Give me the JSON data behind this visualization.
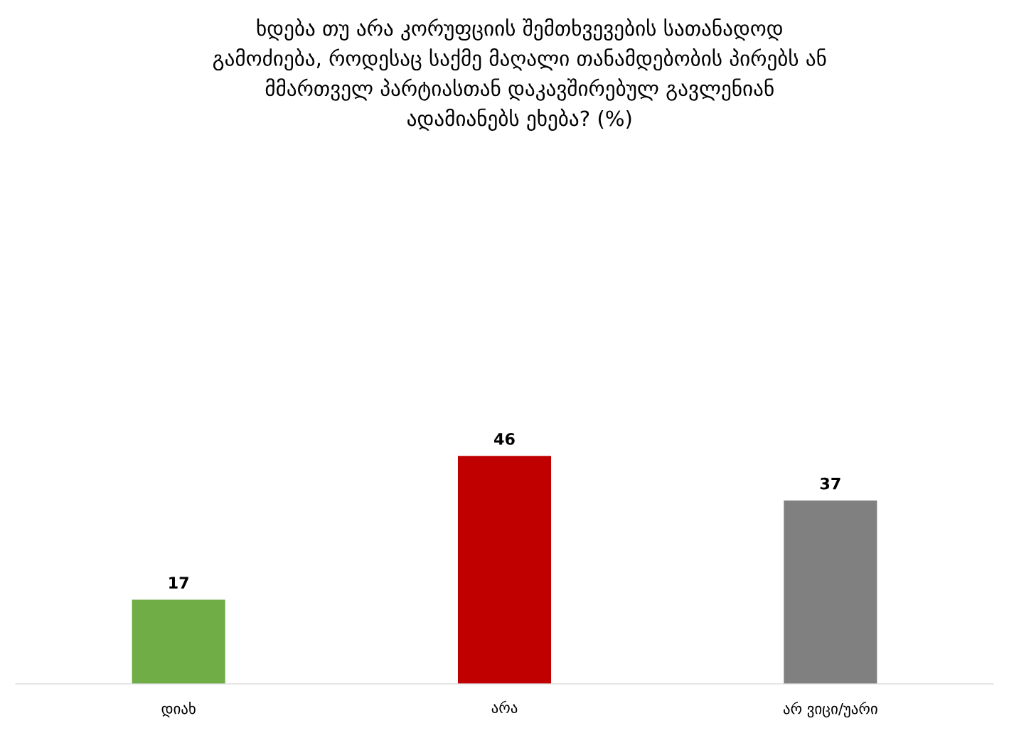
{
  "chart_data": {
    "type": "bar",
    "title": "ხდება თუ არა კორუფციის შემთხვევების სათანადოდ\nგამოძიება, როდესაც საქმე მაღალი თანამდებობის პირებს ან\nმმართველ პარტიასთან დაკავშირებულ გავლენიან\nადამიანებს ეხება? (%)",
    "categories": [
      "დიახ",
      "არა",
      "არ ვიცი/უარი"
    ],
    "values": [
      17,
      46,
      37
    ],
    "colors": [
      "#70ad47",
      "#c00000",
      "#808080"
    ],
    "tick_labels": "x",
    "data_labels": true,
    "grid": false,
    "legend": false
  }
}
